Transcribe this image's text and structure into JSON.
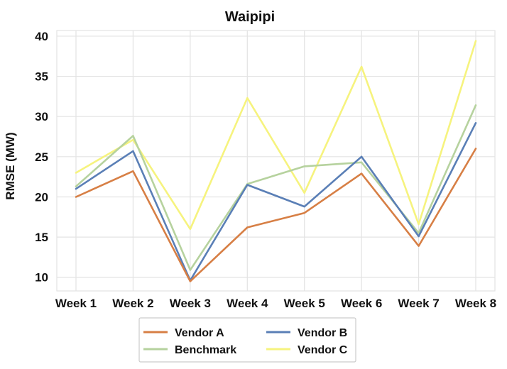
{
  "chart_data": {
    "type": "line",
    "title": "Waipipi",
    "xlabel": "",
    "ylabel": "RMSE (MW)",
    "categories": [
      "Week 1",
      "Week 2",
      "Week 3",
      "Week 4",
      "Week 5",
      "Week 6",
      "Week 7",
      "Week 8"
    ],
    "yticks": [
      10,
      15,
      20,
      25,
      30,
      35,
      40
    ],
    "ylim": [
      8.3,
      40.7
    ],
    "grid": true,
    "legend_position": "bottom",
    "series": [
      {
        "name": "Vendor A",
        "color": "#d77f45",
        "values": [
          20.0,
          23.2,
          9.5,
          16.2,
          18.0,
          22.9,
          13.9,
          26.0
        ]
      },
      {
        "name": "Vendor B",
        "color": "#5a7fb6",
        "values": [
          21.0,
          25.7,
          9.6,
          21.5,
          18.8,
          25.0,
          15.1,
          29.2
        ]
      },
      {
        "name": "Benchmark",
        "color": "#b6d29e",
        "values": [
          21.3,
          27.6,
          10.9,
          21.6,
          23.8,
          24.3,
          15.5,
          31.4
        ]
      },
      {
        "name": "Vendor C",
        "color": "#f6f37e",
        "values": [
          23.0,
          27.1,
          16.0,
          32.3,
          20.5,
          36.2,
          16.6,
          39.4
        ]
      }
    ]
  }
}
